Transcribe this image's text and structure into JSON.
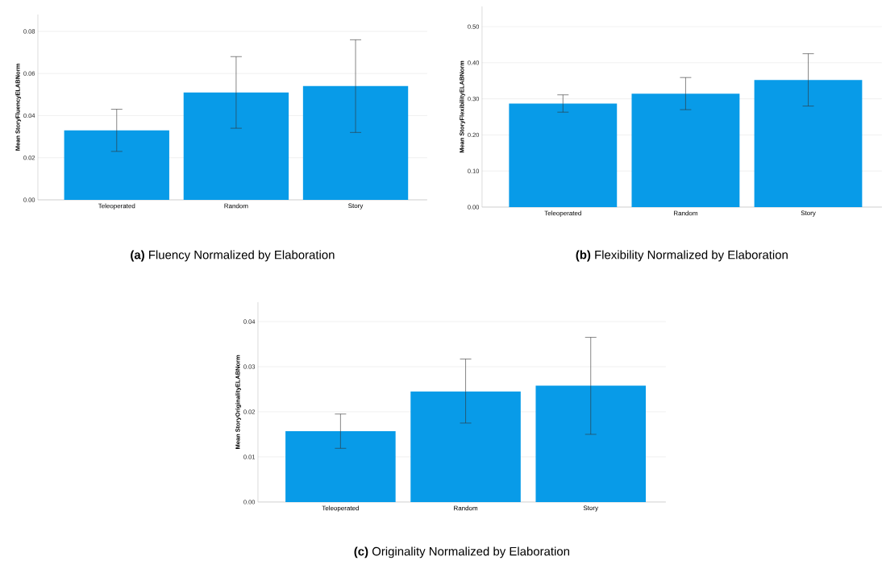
{
  "chart_data": [
    {
      "type": "bar",
      "title": "**(a)** Fluency Normalized by Elaboration",
      "ylabel": "Mean StoryFluencyELABNorm",
      "categories": [
        "Teleoperated",
        "Random",
        "Story"
      ],
      "values": [
        0.033,
        0.051,
        0.054
      ],
      "errors": [
        [
          0.023,
          0.043
        ],
        [
          0.034,
          0.068
        ],
        [
          0.032,
          0.076
        ]
      ],
      "color": "#089be8",
      "ylim": [
        0,
        0.088
      ],
      "yticks": [
        {
          "value": 0,
          "label": "0.00"
        },
        {
          "value": 0.02,
          "label": "0.02"
        },
        {
          "value": 0.04,
          "label": "0.04"
        },
        {
          "value": 0.06,
          "label": "0.06"
        },
        {
          "value": 0.08,
          "label": "0.08"
        }
      ],
      "grid": "y"
    },
    {
      "type": "bar",
      "title": "**(b)** Flexibility Normalized by Elaboration",
      "ylabel": "Mean StoryFlexibilityELABNorm",
      "categories": [
        "Teleoperated",
        "Random",
        "Story"
      ],
      "values": [
        0.287,
        0.314,
        0.352
      ],
      "errors": [
        [
          0.263,
          0.311
        ],
        [
          0.27,
          0.359
        ],
        [
          0.28,
          0.425
        ]
      ],
      "color": "#089be8",
      "ylim": [
        0,
        0.556
      ],
      "yticks": [
        {
          "value": 0,
          "label": "0.00"
        },
        {
          "value": 0.1,
          "label": "0.10"
        },
        {
          "value": 0.2,
          "label": "0.20"
        },
        {
          "value": 0.3,
          "label": "0.30"
        },
        {
          "value": 0.4,
          "label": "0.40"
        },
        {
          "value": 0.5,
          "label": "0.50"
        }
      ],
      "grid": "y"
    },
    {
      "type": "bar",
      "title": "**(c)** Originality Normalized by Elaboration",
      "ylabel": "Mean StoryOriginalityELABNorm",
      "categories": [
        "Teleoperated",
        "Random",
        "Story"
      ],
      "values": [
        0.0157,
        0.0245,
        0.0258
      ],
      "errors": [
        [
          0.0119,
          0.0195
        ],
        [
          0.0175,
          0.0317
        ],
        [
          0.015,
          0.0365
        ]
      ],
      "color": "#089be8",
      "ylim": [
        0,
        0.0443
      ],
      "yticks": [
        {
          "value": 0,
          "label": "0.00"
        },
        {
          "value": 0.01,
          "label": "0.01"
        },
        {
          "value": 0.02,
          "label": "0.02"
        },
        {
          "value": 0.03,
          "label": "0.03"
        },
        {
          "value": 0.04,
          "label": "0.04"
        }
      ],
      "grid": "y"
    }
  ]
}
